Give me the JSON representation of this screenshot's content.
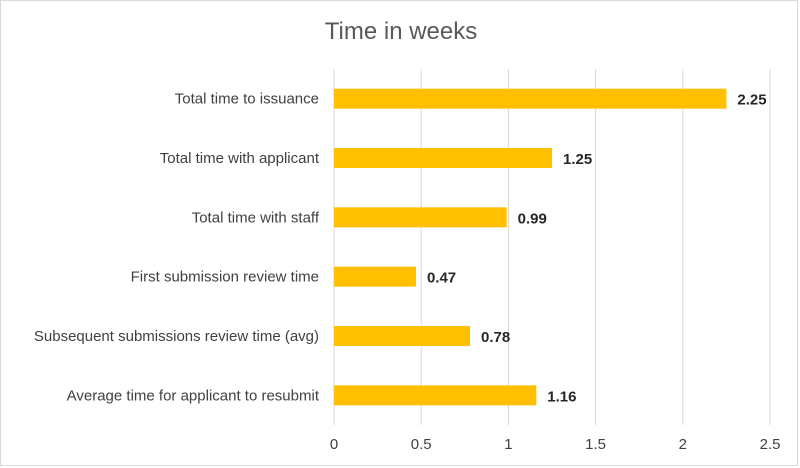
{
  "chart_data": {
    "type": "bar",
    "orientation": "horizontal",
    "title": "Time in weeks",
    "xlabel": "",
    "ylabel": "",
    "categories": [
      "Total time to issuance",
      "Total time with applicant",
      "Total time with staff",
      "First submission review time",
      "Subsequent submissions review time (avg)",
      "Average time for applicant to resubmit"
    ],
    "values": [
      2.25,
      1.25,
      0.99,
      0.47,
      0.78,
      1.16
    ],
    "value_labels": [
      "2.25",
      "1.25",
      "0.99",
      "0.47",
      "0.78",
      "1.16"
    ],
    "xlim": [
      0,
      2.5
    ],
    "ticks": [
      0,
      0.5,
      1,
      1.5,
      2,
      2.5
    ],
    "tick_labels": [
      "0",
      "0.5",
      "1",
      "1.5",
      "2",
      "2.5"
    ],
    "grid": true,
    "legend": "none",
    "bar_color": "#FFC000",
    "grid_color": "#D9D9D9"
  }
}
